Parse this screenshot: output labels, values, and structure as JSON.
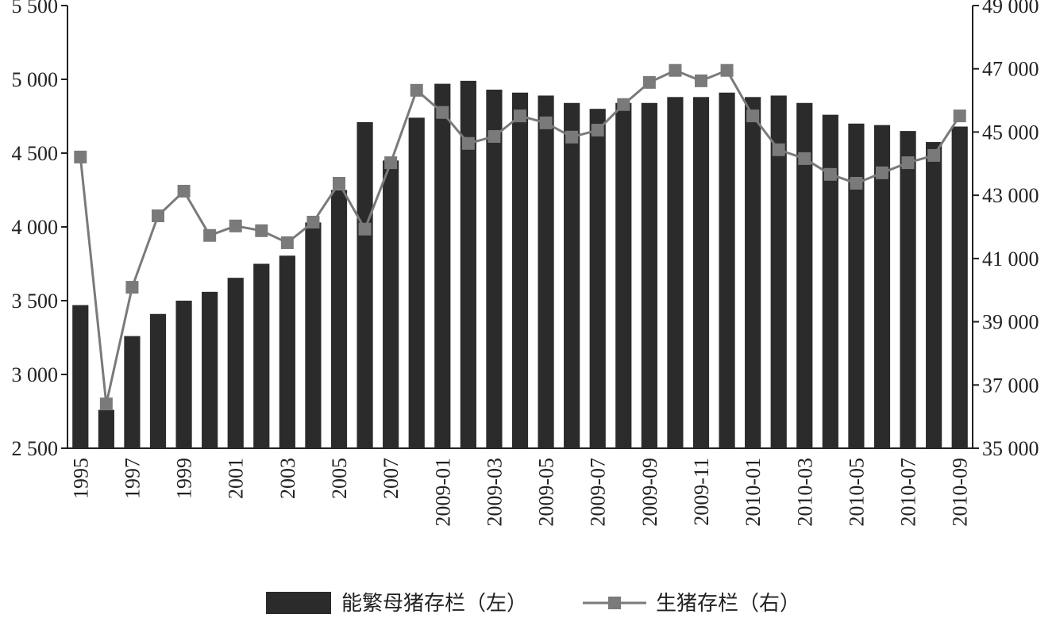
{
  "chart_data": {
    "type": "bar_line",
    "categories": [
      "1995",
      null,
      "1997",
      null,
      "1999",
      null,
      "2001",
      null,
      "2003",
      null,
      "2005",
      null,
      "2007",
      null,
      "2009-01",
      null,
      "2009-03",
      null,
      "2009-05",
      null,
      "2009-07",
      null,
      "2009-09",
      null,
      "2009-11",
      null,
      "2010-01",
      null,
      "2010-03",
      null,
      "2010-05",
      null,
      "2010-07",
      null,
      "2010-09"
    ],
    "series": [
      {
        "name": "能繁母猪存栏（左）",
        "type": "bar",
        "color": "#2b2b2b",
        "values": [
          3470,
          2760,
          3260,
          3410,
          3500,
          3560,
          3655,
          3750,
          3805,
          4030,
          4250,
          4710,
          4450,
          4740,
          4970,
          4990,
          4930,
          4910,
          4890,
          4840,
          4800,
          4840,
          4840,
          4880,
          4880,
          4910,
          4880,
          4890,
          4840,
          4760,
          4700,
          4690,
          4650,
          4575,
          4680
        ]
      },
      {
        "name": "生猪存栏（右）",
        "type": "line",
        "axis": "y2",
        "color": "#7a7a7a",
        "values": [
          44210,
          36400,
          40090,
          42350,
          43130,
          41730,
          42030,
          41880,
          41500,
          42150,
          43380,
          41930,
          44030,
          46320,
          45620,
          44640,
          44860,
          45510,
          45290,
          44840,
          45060,
          45870,
          46570,
          46950,
          46620,
          46950,
          45510,
          44440,
          44160,
          43660,
          43380,
          43710,
          44030,
          44260,
          45510
        ]
      }
    ],
    "ylim": [
      2500,
      5500
    ],
    "yticks": [
      {
        "value": 2500,
        "label": "2 500"
      },
      {
        "value": 3000,
        "label": "3 000"
      },
      {
        "value": 3500,
        "label": "3 500"
      },
      {
        "value": 4000,
        "label": "4 000"
      },
      {
        "value": 4500,
        "label": "4 500"
      },
      {
        "value": 5000,
        "label": "5 000"
      },
      {
        "value": 5500,
        "label": "5 500"
      }
    ],
    "y2lim": [
      35000,
      49000
    ],
    "y2ticks": [
      {
        "value": 35000,
        "label": "35 000"
      },
      {
        "value": 37000,
        "label": "37 000"
      },
      {
        "value": 39000,
        "label": "39 000"
      },
      {
        "value": 41000,
        "label": "41 000"
      },
      {
        "value": 43000,
        "label": "43 000"
      },
      {
        "value": 45000,
        "label": "45 000"
      },
      {
        "value": 47000,
        "label": "47 000"
      },
      {
        "value": 49000,
        "label": "49 000"
      }
    ],
    "legend": "bottom"
  }
}
